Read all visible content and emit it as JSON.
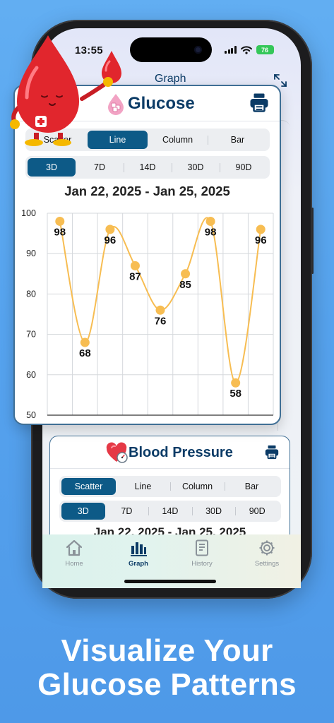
{
  "status_bar": {
    "time": "13:55",
    "battery": "76"
  },
  "nav": {
    "title": "Graph"
  },
  "glucose_card": {
    "title": "Glucose",
    "chart_types": [
      "Scatter",
      "Line",
      "Column",
      "Bar"
    ],
    "active_chart_type": 1,
    "ranges": [
      "3D",
      "7D",
      "14D",
      "30D",
      "90D"
    ],
    "active_range": 0,
    "date_range": "Jan 22, 2025 - Jan 25, 2025"
  },
  "chart_data": {
    "type": "line",
    "title": "",
    "xlabel": "",
    "ylabel": "",
    "ylim": [
      50,
      100
    ],
    "yticks": [
      50,
      60,
      70,
      80,
      90,
      100
    ],
    "grid": true,
    "legend": "none",
    "series": [
      {
        "values": [
          98,
          68,
          96,
          87,
          76,
          85,
          98,
          58,
          96
        ]
      }
    ],
    "data_labels": [
      "98",
      "68",
      "96",
      "87",
      "76",
      "85",
      "98",
      "58",
      "96"
    ],
    "colors": {
      "line": "#f7bd52",
      "point": "#f7bd52",
      "grid": "#d5d8dc",
      "axis": "#333333"
    }
  },
  "bp_card": {
    "title": "Blood Pressure",
    "chart_types": [
      "Scatter",
      "Line",
      "Column",
      "Bar"
    ],
    "active_chart_type": 0,
    "ranges": [
      "3D",
      "7D",
      "14D",
      "30D",
      "90D"
    ],
    "active_range": 0,
    "date_range": "Jan 22, 2025 - Jan 25, 2025"
  },
  "tabbar": {
    "items": [
      {
        "label": "Home",
        "icon": "home-icon"
      },
      {
        "label": "Graph",
        "icon": "chart-icon"
      },
      {
        "label": "History",
        "icon": "document-icon"
      },
      {
        "label": "Settings",
        "icon": "gear-icon"
      }
    ],
    "active": 1
  },
  "caption": {
    "line1": "Visualize Your",
    "line2": "Glucose Patterns"
  },
  "theme": {
    "accent": "#0d5a87",
    "title_color": "#0b3b66",
    "background": "#56a3ee"
  }
}
